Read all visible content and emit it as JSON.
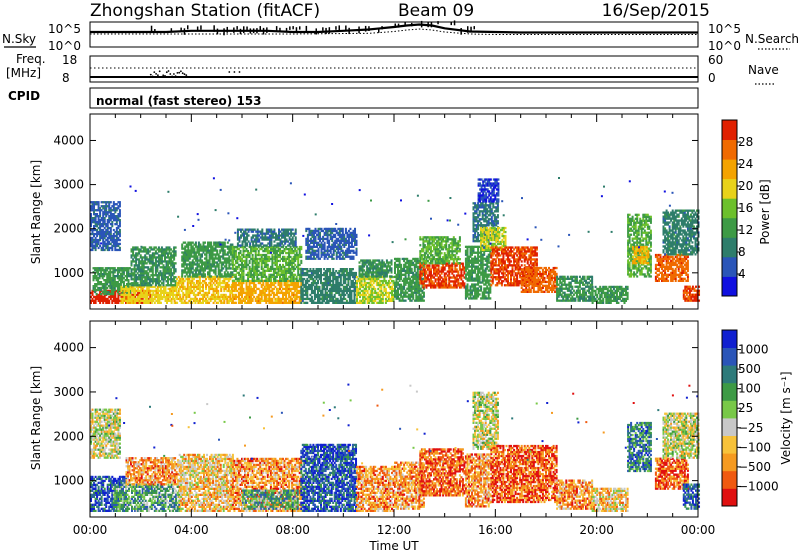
{
  "header": {
    "station": "Zhongshan Station (fitACF)",
    "beam": "Beam 09",
    "date": "16/Sep/2015"
  },
  "top_panels": {
    "nsky_label": "N.Sky",
    "nsearch_label": "N.Search",
    "left_ticks": [
      "10^5",
      "10^0"
    ],
    "right_ticks": [
      "10^5",
      "10^0"
    ],
    "freq_label": "Freq.",
    "freq_unit": "[MHz]",
    "freq_ticks": [
      "18",
      "8"
    ],
    "nave_label": "Nave",
    "nave_ticks": [
      "60",
      "0"
    ],
    "cpid_label": "CPID",
    "mode_text": "normal (fast stereo) 153"
  },
  "colors": {
    "power": [
      "#1010e0",
      "#2a55b8",
      "#2e7d6b",
      "#3d9a45",
      "#6cc02c",
      "#e8d21a",
      "#f4a300",
      "#f06a00",
      "#e02000"
    ],
    "velocity": [
      "#e01010",
      "#f05a10",
      "#f59a20",
      "#f7c23a",
      "#c8c8c8",
      "#78c848",
      "#3d9a45",
      "#2d7a7a",
      "#2a55b8",
      "#1020d0"
    ]
  },
  "chart_data": [
    {
      "type": "heatmap",
      "name": "power-panel",
      "ylabel": "Slant Range [km]",
      "y_ticks": [
        "4000",
        "3000",
        "2000",
        "1000"
      ],
      "yrange": [
        180,
        4600
      ],
      "xrange_hours": [
        0,
        24
      ],
      "colorbar_label": "Power [dB]",
      "colorbar_ticks": [
        "28",
        "24",
        "20",
        "16",
        "12",
        "8",
        "4"
      ],
      "colorbar_range": [
        0,
        32
      ],
      "patches": [
        {
          "t": [
            0.0,
            2.4
          ],
          "r": [
            300,
            600
          ],
          "v": 31
        },
        {
          "t": [
            0.1,
            1.6
          ],
          "r": [
            500,
            1100
          ],
          "v": 12
        },
        {
          "t": [
            0.0,
            1.2
          ],
          "r": [
            1500,
            2600
          ],
          "v": 6
        },
        {
          "t": [
            1.2,
            3.4
          ],
          "r": [
            300,
            700
          ],
          "v": 20
        },
        {
          "t": [
            1.6,
            3.4
          ],
          "r": [
            700,
            1600
          ],
          "v": 11
        },
        {
          "t": [
            3.4,
            5.6
          ],
          "r": [
            300,
            900
          ],
          "v": 21
        },
        {
          "t": [
            3.6,
            5.6
          ],
          "r": [
            900,
            1700
          ],
          "v": 12
        },
        {
          "t": [
            5.6,
            8.3
          ],
          "r": [
            300,
            800
          ],
          "v": 23
        },
        {
          "t": [
            5.6,
            8.3
          ],
          "r": [
            800,
            1600
          ],
          "v": 14
        },
        {
          "t": [
            5.8,
            8.1
          ],
          "r": [
            1600,
            2000
          ],
          "v": 8
        },
        {
          "t": [
            8.3,
            10.5
          ],
          "r": [
            300,
            1100
          ],
          "v": 9
        },
        {
          "t": [
            8.5,
            10.5
          ],
          "r": [
            1300,
            2000
          ],
          "v": 6
        },
        {
          "t": [
            10.5,
            12.0
          ],
          "r": [
            300,
            900
          ],
          "v": 18
        },
        {
          "t": [
            10.6,
            11.9
          ],
          "r": [
            900,
            1300
          ],
          "v": 11
        },
        {
          "t": [
            12.0,
            13.2
          ],
          "r": [
            350,
            1300
          ],
          "v": 12
        },
        {
          "t": [
            13.0,
            14.8
          ],
          "r": [
            650,
            1200
          ],
          "v": 29
        },
        {
          "t": [
            13.0,
            14.6
          ],
          "r": [
            1200,
            1800
          ],
          "v": 14
        },
        {
          "t": [
            14.8,
            15.8
          ],
          "r": [
            400,
            1600
          ],
          "v": 12
        },
        {
          "t": [
            15.1,
            16.1
          ],
          "r": [
            1700,
            2600
          ],
          "v": 8
        },
        {
          "t": [
            15.3,
            16.1
          ],
          "r": [
            2600,
            3100
          ],
          "v": 4
        },
        {
          "t": [
            15.4,
            16.4
          ],
          "r": [
            1500,
            2000
          ],
          "v": 18
        },
        {
          "t": [
            15.8,
            17.6
          ],
          "r": [
            700,
            1600
          ],
          "v": 29
        },
        {
          "t": [
            17.0,
            18.4
          ],
          "r": [
            550,
            1100
          ],
          "v": 27
        },
        {
          "t": [
            18.4,
            19.8
          ],
          "r": [
            350,
            900
          ],
          "v": 11
        },
        {
          "t": [
            19.8,
            21.2
          ],
          "r": [
            300,
            700
          ],
          "v": 12
        },
        {
          "t": [
            21.2,
            22.1
          ],
          "r": [
            900,
            2300
          ],
          "v": 14
        },
        {
          "t": [
            21.4,
            22.0
          ],
          "r": [
            1200,
            1600
          ],
          "v": 22
        },
        {
          "t": [
            22.3,
            23.6
          ],
          "r": [
            800,
            1400
          ],
          "v": 27
        },
        {
          "t": [
            22.6,
            24.0
          ],
          "r": [
            1400,
            2400
          ],
          "v": 9
        },
        {
          "t": [
            23.4,
            24.0
          ],
          "r": [
            350,
            700
          ],
          "v": 29
        }
      ]
    },
    {
      "type": "heatmap",
      "name": "velocity-panel",
      "ylabel": "Slant Range [km]",
      "xlabel": "Time UT",
      "y_ticks": [
        "4000",
        "3000",
        "2000",
        "1000"
      ],
      "x_ticks": [
        "00:00",
        "04:00",
        "08:00",
        "12:00",
        "16:00",
        "20:00",
        "00:00"
      ],
      "yrange": [
        180,
        4600
      ],
      "xrange_hours": [
        0,
        24
      ],
      "colorbar_label": "Velocity [m s⁻¹]",
      "colorbar_ticks": [
        "1000",
        "500",
        "100",
        "25",
        "−25",
        "−100",
        "−500",
        "−1000"
      ],
      "patches": [
        {
          "t": [
            0.0,
            1.4
          ],
          "r": [
            300,
            1100
          ],
          "v": 8
        },
        {
          "t": [
            0.0,
            1.2
          ],
          "r": [
            1500,
            2600
          ],
          "v": 4
        },
        {
          "t": [
            0.9,
            3.5
          ],
          "r": [
            300,
            900
          ],
          "v": 6
        },
        {
          "t": [
            1.4,
            3.5
          ],
          "r": [
            900,
            1500
          ],
          "v": 2
        },
        {
          "t": [
            3.5,
            5.6
          ],
          "r": [
            300,
            1600
          ],
          "v": 3
        },
        {
          "t": [
            5.6,
            8.3
          ],
          "r": [
            300,
            1500
          ],
          "v": 2
        },
        {
          "t": [
            6.0,
            8.2
          ],
          "r": [
            350,
            800
          ],
          "v": 6
        },
        {
          "t": [
            8.3,
            10.5
          ],
          "r": [
            300,
            1800
          ],
          "v": 8
        },
        {
          "t": [
            10.5,
            12.0
          ],
          "r": [
            300,
            1300
          ],
          "v": 2
        },
        {
          "t": [
            12.0,
            13.2
          ],
          "r": [
            350,
            1400
          ],
          "v": 2
        },
        {
          "t": [
            13.0,
            14.8
          ],
          "r": [
            650,
            1700
          ],
          "v": 1
        },
        {
          "t": [
            14.8,
            15.8
          ],
          "r": [
            400,
            1600
          ],
          "v": 2
        },
        {
          "t": [
            15.1,
            16.1
          ],
          "r": [
            1700,
            3000
          ],
          "v": 4
        },
        {
          "t": [
            15.8,
            18.4
          ],
          "r": [
            500,
            1800
          ],
          "v": 1
        },
        {
          "t": [
            18.4,
            19.8
          ],
          "r": [
            350,
            1000
          ],
          "v": 2
        },
        {
          "t": [
            19.8,
            21.2
          ],
          "r": [
            300,
            800
          ],
          "v": 3
        },
        {
          "t": [
            21.2,
            22.1
          ],
          "r": [
            1200,
            2300
          ],
          "v": 7
        },
        {
          "t": [
            22.3,
            23.6
          ],
          "r": [
            800,
            1500
          ],
          "v": 1
        },
        {
          "t": [
            22.6,
            24.0
          ],
          "r": [
            1500,
            2500
          ],
          "v": 4
        },
        {
          "t": [
            23.4,
            24.0
          ],
          "r": [
            350,
            900
          ],
          "v": 8
        }
      ]
    },
    {
      "type": "line",
      "name": "nsky-strip",
      "xrange_hours": [
        0,
        24
      ],
      "series": [
        {
          "name": "N.Sky",
          "x": [
            0,
            1,
            2,
            3,
            4,
            5,
            6,
            7,
            8,
            9,
            10,
            11,
            12,
            12.5,
            13,
            13.5,
            14,
            15,
            16,
            17,
            18,
            19,
            20,
            21,
            22,
            23,
            24
          ],
          "y": [
            0.6,
            0.6,
            0.6,
            0.6,
            0.65,
            0.65,
            0.65,
            0.65,
            0.6,
            0.6,
            0.65,
            0.7,
            0.8,
            0.86,
            0.9,
            0.86,
            0.75,
            0.62,
            0.6,
            0.58,
            0.58,
            0.58,
            0.58,
            0.58,
            0.58,
            0.58,
            0.58
          ]
        },
        {
          "name": "N.Search",
          "x": [
            0,
            4,
            8,
            11,
            12,
            12.5,
            13,
            13.5,
            14,
            15,
            16,
            24
          ],
          "y": [
            0.52,
            0.52,
            0.52,
            0.55,
            0.62,
            0.68,
            0.72,
            0.68,
            0.6,
            0.52,
            0.5,
            0.5
          ]
        }
      ]
    }
  ]
}
